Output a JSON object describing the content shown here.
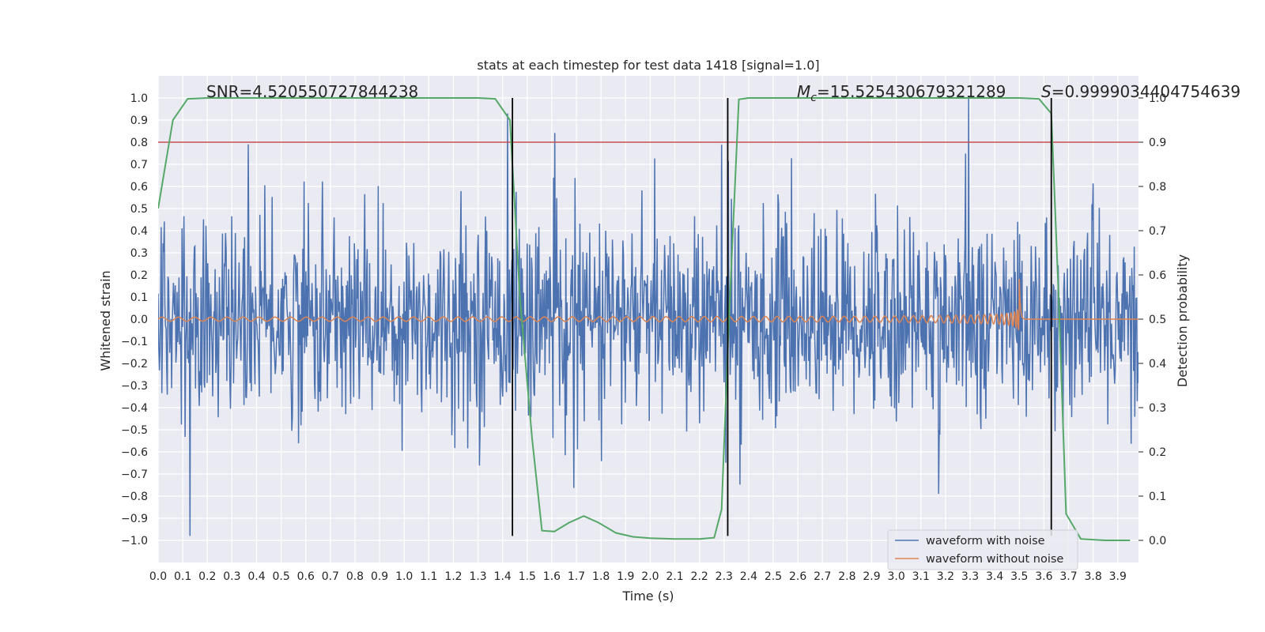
{
  "chart_data": {
    "type": "line",
    "title": "stats at each timestep for test data 1418 [signal=1.0]",
    "xlabel": "Time (s)",
    "ylabel": "Whitened strain",
    "y2label": "Detection probability",
    "xlim": [
      0.0,
      3.9844
    ],
    "ylim": [
      -1.1,
      1.1
    ],
    "y2lim": [
      -0.05,
      1.05
    ],
    "x_ticks": [
      0.0,
      0.1,
      0.2,
      0.3,
      0.4,
      0.5,
      0.6,
      0.7,
      0.8,
      0.9,
      1.0,
      1.1,
      1.2,
      1.3,
      1.4,
      1.5,
      1.6,
      1.7,
      1.8,
      1.9,
      2.0,
      2.1,
      2.2,
      2.3,
      2.4,
      2.5,
      2.6,
      2.7,
      2.8,
      2.9,
      3.0,
      3.1,
      3.2,
      3.3,
      3.4,
      3.5,
      3.6,
      3.7,
      3.8,
      3.9
    ],
    "x_tick_labels": [
      "0.0",
      "0.1",
      "0.2",
      "0.3",
      "0.4",
      "0.5",
      "0.6",
      "0.7",
      "0.8",
      "0.9",
      "1.0",
      "1.1",
      "1.2",
      "1.3",
      "1.4",
      "1.5",
      "1.6",
      "1.7",
      "1.8",
      "1.9",
      "2.0",
      "2.1",
      "2.2",
      "2.3",
      "2.4",
      "2.5",
      "2.6",
      "2.7",
      "2.8",
      "2.9",
      "3.0",
      "3.1",
      "3.2",
      "3.3",
      "3.4",
      "3.5",
      "3.6",
      "3.7",
      "3.8",
      "3.9"
    ],
    "y_ticks": [
      1.0,
      0.9,
      0.8,
      0.7,
      0.6,
      0.5,
      0.4,
      0.3,
      0.2,
      0.1,
      0.0,
      -0.1,
      -0.2,
      -0.3,
      -0.4,
      -0.5,
      -0.6,
      -0.7,
      -0.8,
      -0.9,
      -1.0
    ],
    "y_tick_labels": [
      "1.0",
      "0.9",
      "0.8",
      "0.7",
      "0.6",
      "0.5",
      "0.4",
      "0.3",
      "0.2",
      "0.1",
      "0.0",
      "−0.1",
      "−0.2",
      "−0.3",
      "−0.4",
      "−0.5",
      "−0.6",
      "−0.7",
      "−0.8",
      "−0.9",
      "−1.0"
    ],
    "y2_ticks": [
      1.0,
      0.9,
      0.8,
      0.7,
      0.6,
      0.5,
      0.4,
      0.3,
      0.2,
      0.1,
      0.0
    ],
    "y2_tick_labels": [
      "1.0",
      "0.9",
      "0.8",
      "0.7",
      "0.6",
      "0.5",
      "0.4",
      "0.3",
      "0.2",
      "0.1",
      "0.0"
    ],
    "grid": true,
    "legend": {
      "placement": "lower-right",
      "entries": [
        {
          "label": "waveform with noise",
          "color": "#4c72b0"
        },
        {
          "label": "waveform without noise",
          "color": "#dd8452"
        }
      ]
    },
    "annotations": {
      "snr": "SNR=4.520550727844238",
      "mc_symbol": "M",
      "mc_subscript": "c",
      "mc_value": "=15.525430679321289",
      "s_symbol": "S",
      "s_value": "=0.9999034404754639"
    },
    "series": [
      {
        "name": "waveform with noise",
        "axis": "left",
        "color": "#4c72b0",
        "description_values": {
          "approx_envelope_max": 1.0,
          "approx_envelope_min": -0.98,
          "n_samples": 1600
        }
      },
      {
        "name": "waveform without noise",
        "axis": "left",
        "color": "#dd8452",
        "chirp": {
          "start_time": 0.0,
          "merger_time": 3.5,
          "start_amplitude": 0.01,
          "peak_amplitude": 0.21,
          "start_freq_hz": 20,
          "end_freq_hz": 150
        }
      },
      {
        "name": "Detection probability",
        "axis": "right",
        "color": "#55a868",
        "x": [
          0.0,
          0.06,
          0.12,
          0.2,
          0.3,
          0.5,
          0.8,
          1.0,
          1.2,
          1.3,
          1.37,
          1.43,
          1.47,
          1.52,
          1.56,
          1.61,
          1.67,
          1.73,
          1.79,
          1.86,
          1.93,
          2.0,
          2.1,
          2.2,
          2.26,
          2.29,
          2.32,
          2.36,
          2.4,
          2.5,
          2.8,
          3.2,
          3.5,
          3.58,
          3.63,
          3.66,
          3.69,
          3.75,
          3.85,
          3.95
        ],
        "y": [
          0.75,
          0.95,
          0.998,
          1.0,
          1.0,
          1.0,
          1.0,
          1.0,
          1.0,
          1.0,
          0.998,
          0.95,
          0.55,
          0.23,
          0.022,
          0.02,
          0.04,
          0.055,
          0.04,
          0.017,
          0.008,
          0.005,
          0.003,
          0.003,
          0.006,
          0.07,
          0.5,
          0.997,
          1.0,
          1.0,
          1.0,
          1.0,
          1.0,
          0.998,
          0.965,
          0.55,
          0.06,
          0.003,
          0.0,
          0.0
        ]
      }
    ],
    "hlines": [
      {
        "y": 0.8,
        "axis": "left",
        "color": "#c44e52"
      }
    ],
    "vlines": [
      {
        "x": 1.44,
        "ymin": -0.98,
        "ymax": 1.0,
        "color": "#000000"
      },
      {
        "x": 2.315,
        "ymin": -0.98,
        "ymax": 1.0,
        "color": "#000000"
      },
      {
        "x": 3.63,
        "ymin": -0.98,
        "ymax": 1.0,
        "color": "#000000"
      }
    ]
  }
}
